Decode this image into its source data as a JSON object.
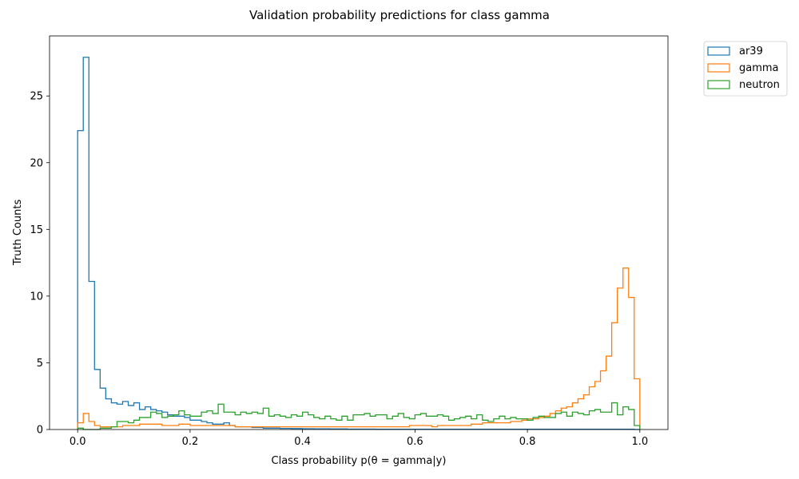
{
  "chart_data": {
    "type": "histogram",
    "title": "Validation probability predictions for class gamma",
    "xlabel": "Class probability p(θ = gamma|y)",
    "ylabel": "Truth Counts",
    "xlim": [
      -0.05,
      1.05
    ],
    "ylim": [
      0,
      29.5
    ],
    "xticks": [
      0.0,
      0.2,
      0.4,
      0.6,
      0.8,
      1.0
    ],
    "xtick_labels": [
      "0.0",
      "0.2",
      "0.4",
      "0.6",
      "0.8",
      "1.0"
    ],
    "yticks": [
      0,
      5,
      10,
      15,
      20,
      25
    ],
    "ytick_labels": [
      "0",
      "5",
      "10",
      "15",
      "20",
      "25"
    ],
    "bin_range": [
      0,
      1
    ],
    "bins": 100,
    "legend_position": "outside-top-right",
    "series": [
      {
        "name": "ar39",
        "color": "#1f77b4",
        "values": [
          22.4,
          27.9,
          11.1,
          4.5,
          3.1,
          2.3,
          2.0,
          1.9,
          2.1,
          1.8,
          2.0,
          1.5,
          1.7,
          1.5,
          1.4,
          1.3,
          1.1,
          1.0,
          1.0,
          0.9,
          0.7,
          0.7,
          0.6,
          0.5,
          0.4,
          0.4,
          0.5,
          0.3,
          0.2,
          0.2,
          0.2,
          0.15,
          0.15,
          0.1,
          0.1,
          0.1,
          0.08,
          0.08,
          0.07,
          0.07,
          0.06,
          0.06,
          0.05,
          0.05,
          0.05,
          0.04,
          0.04,
          0.04,
          0.03,
          0.03,
          0.03,
          0.03,
          0.03,
          0.02,
          0.02,
          0.02,
          0.02,
          0.02,
          0.02,
          0.02,
          0.02,
          0.02,
          0.02,
          0.02,
          0.02,
          0.02,
          0.02,
          0.02,
          0.02,
          0.02,
          0.02,
          0.02,
          0.02,
          0.02,
          0.02,
          0.02,
          0.02,
          0.02,
          0.02,
          0.02,
          0.02,
          0.02,
          0.02,
          0.02,
          0.02,
          0.02,
          0.02,
          0.02,
          0.02,
          0.02,
          0.02,
          0.02,
          0.02,
          0.02,
          0.02,
          0.02,
          0.02,
          0.02,
          0.02,
          0.0
        ]
      },
      {
        "name": "gamma",
        "color": "#ff7f0e",
        "values": [
          0.5,
          1.2,
          0.6,
          0.3,
          0.2,
          0.2,
          0.2,
          0.2,
          0.3,
          0.3,
          0.3,
          0.4,
          0.4,
          0.4,
          0.4,
          0.3,
          0.3,
          0.3,
          0.4,
          0.4,
          0.3,
          0.3,
          0.3,
          0.3,
          0.3,
          0.3,
          0.3,
          0.3,
          0.2,
          0.2,
          0.2,
          0.2,
          0.2,
          0.2,
          0.2,
          0.2,
          0.2,
          0.2,
          0.2,
          0.2,
          0.2,
          0.2,
          0.2,
          0.2,
          0.2,
          0.2,
          0.2,
          0.2,
          0.2,
          0.2,
          0.2,
          0.2,
          0.2,
          0.2,
          0.2,
          0.2,
          0.2,
          0.2,
          0.2,
          0.3,
          0.3,
          0.3,
          0.3,
          0.2,
          0.3,
          0.3,
          0.3,
          0.3,
          0.3,
          0.3,
          0.4,
          0.4,
          0.5,
          0.5,
          0.5,
          0.5,
          0.5,
          0.6,
          0.6,
          0.7,
          0.8,
          0.8,
          0.9,
          1.0,
          1.2,
          1.4,
          1.6,
          1.7,
          2.0,
          2.3,
          2.6,
          3.2,
          3.6,
          4.4,
          5.5,
          8.0,
          10.6,
          12.1,
          9.9,
          3.8
        ]
      },
      {
        "name": "neutron",
        "color": "#2ca02c",
        "values": [
          0.1,
          0.0,
          0.0,
          0.0,
          0.1,
          0.1,
          0.2,
          0.6,
          0.6,
          0.5,
          0.7,
          0.9,
          0.9,
          1.3,
          1.2,
          0.9,
          1.0,
          1.1,
          1.4,
          1.1,
          1.0,
          1.0,
          1.3,
          1.4,
          1.2,
          1.9,
          1.3,
          1.3,
          1.1,
          1.3,
          1.2,
          1.3,
          1.2,
          1.6,
          1.0,
          1.1,
          1.0,
          0.9,
          1.1,
          1.0,
          1.3,
          1.1,
          0.9,
          0.8,
          1.0,
          0.8,
          0.7,
          1.0,
          0.7,
          1.1,
          1.1,
          1.2,
          1.0,
          1.1,
          1.1,
          0.8,
          1.0,
          1.2,
          0.9,
          0.8,
          1.1,
          1.2,
          1.0,
          1.0,
          1.1,
          1.0,
          0.7,
          0.8,
          0.9,
          1.0,
          0.8,
          1.1,
          0.7,
          0.6,
          0.8,
          1.0,
          0.8,
          0.9,
          0.8,
          0.8,
          0.7,
          0.9,
          1.0,
          0.9,
          0.9,
          1.2,
          1.3,
          1.0,
          1.3,
          1.2,
          1.1,
          1.4,
          1.5,
          1.3,
          1.3,
          2.0,
          1.1,
          1.7,
          1.5,
          0.3
        ]
      }
    ]
  }
}
